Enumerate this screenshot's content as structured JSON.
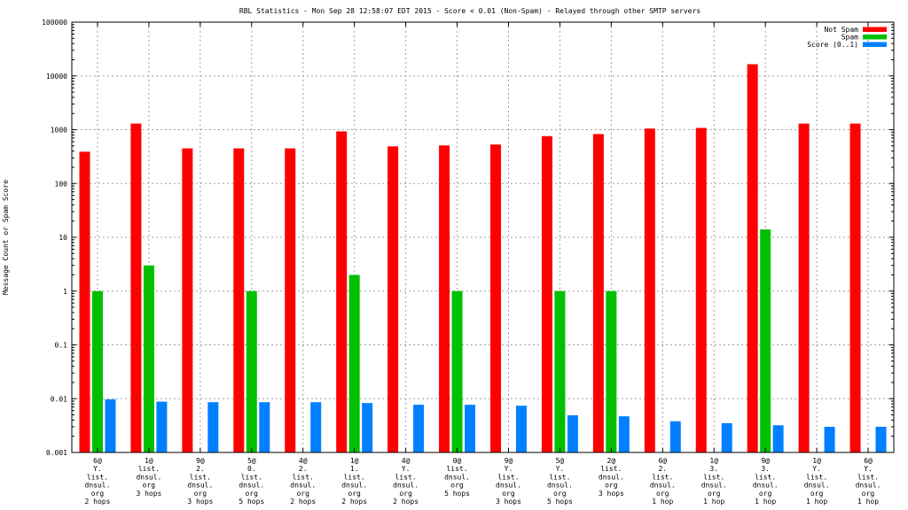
{
  "chart_data": {
    "type": "bar",
    "title": "RBL Statistics - Mon Sep 28 12:58:07 EDT 2015 - Score < 0.01 (Non-Spam) - Relayed through other SMTP servers",
    "xlabel": "",
    "ylabel": "Message Count or Spam Score",
    "yscale": "log",
    "ylim": [
      0.001,
      100000
    ],
    "ytick_labels": [
      "0.001",
      "0.01",
      "0.1",
      "1",
      "10",
      "100",
      "1000",
      "10000",
      "100000"
    ],
    "grid": true,
    "legend_position": "top-right",
    "categories": [
      [
        "6@",
        "Y.",
        "list.",
        "dnsul.",
        "org",
        "2 hops"
      ],
      [
        "1@",
        "list.",
        "dnsul.",
        "org",
        "3 hops"
      ],
      [
        "9@",
        "2.",
        "list.",
        "dnsul.",
        "org",
        "3 hops"
      ],
      [
        "5@",
        "0.",
        "list.",
        "dnsul.",
        "org",
        "5 hops"
      ],
      [
        "4@",
        "2.",
        "list.",
        "dnsul.",
        "org",
        "2 hops"
      ],
      [
        "1@",
        "1.",
        "list.",
        "dnsul.",
        "org",
        "2 hops"
      ],
      [
        "4@",
        "Y.",
        "list.",
        "dnsul.",
        "org",
        "2 hops"
      ],
      [
        "0@",
        "list.",
        "dnsul.",
        "org",
        "5 hops"
      ],
      [
        "9@",
        "Y.",
        "list.",
        "dnsul.",
        "org",
        "3 hops"
      ],
      [
        "5@",
        "Y.",
        "list.",
        "dnsul.",
        "org",
        "5 hops"
      ],
      [
        "2@",
        "list.",
        "dnsul.",
        "org",
        "3 hops"
      ],
      [
        "6@",
        "2.",
        "list.",
        "dnsul.",
        "org",
        "1 hop"
      ],
      [
        "1@",
        "3.",
        "list.",
        "dnsul.",
        "org",
        "1 hop"
      ],
      [
        "9@",
        "3.",
        "list.",
        "dnsul.",
        "org",
        "1 hop"
      ],
      [
        "1@",
        "Y.",
        "list.",
        "dnsul.",
        "org",
        "1 hop"
      ],
      [
        "6@",
        "Y.",
        "list.",
        "dnsul.",
        "org",
        "1 hop"
      ]
    ],
    "series": [
      {
        "name": "Not Spam",
        "color": "#ff0000",
        "values": [
          390,
          1300,
          450,
          450,
          450,
          930,
          490,
          510,
          530,
          760,
          830,
          1050,
          1080,
          16500,
          1300,
          1300
        ]
      },
      {
        "name": "Spam",
        "color": "#00c000",
        "values": [
          1,
          3,
          null,
          1,
          null,
          2,
          null,
          1,
          null,
          1,
          1,
          null,
          null,
          14,
          null,
          null
        ]
      },
      {
        "name": "Score (0..1)",
        "color": "#0080ff",
        "values": [
          0.0097,
          0.0088,
          0.0086,
          0.0086,
          0.0086,
          0.0083,
          0.0077,
          0.0077,
          0.0074,
          0.0049,
          0.0047,
          0.0038,
          0.0035,
          0.0032,
          0.003,
          0.003
        ]
      }
    ]
  }
}
